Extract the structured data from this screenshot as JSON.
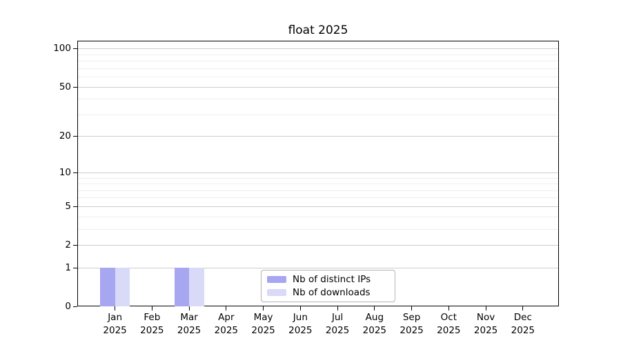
{
  "title": "float 2025",
  "chart_data": {
    "type": "bar",
    "title": "float 2025",
    "xlabel": "",
    "ylabel": "",
    "categories": [
      "Jan 2025",
      "Feb 2025",
      "Mar 2025",
      "Apr 2025",
      "May 2025",
      "Jun 2025",
      "Jul 2025",
      "Aug 2025",
      "Sep 2025",
      "Oct 2025",
      "Nov 2025",
      "Dec 2025"
    ],
    "series": [
      {
        "name": "Nb of distinct IPs",
        "color": "#a6a6f1",
        "values": [
          1,
          0,
          1,
          0,
          0,
          0,
          0,
          0,
          0,
          0,
          0,
          0
        ]
      },
      {
        "name": "Nb of downloads",
        "color": "#d9d9f8",
        "values": [
          1,
          0,
          1,
          0,
          0,
          0,
          0,
          0,
          0,
          0,
          0,
          0
        ]
      }
    ],
    "yscale": "log1p",
    "ylim": [
      0,
      115
    ],
    "yticks": [
      0,
      1,
      2,
      5,
      10,
      20,
      50,
      100
    ],
    "yticks_minor": [
      3,
      4,
      6,
      7,
      8,
      9,
      30,
      40,
      60,
      70,
      80,
      90
    ],
    "grid": "horizontal",
    "legend_position": "lower center inside"
  },
  "colors": {
    "background": "#ffffff",
    "spine": "#000000",
    "grid_major": "#cdcdcd",
    "grid_minor": "#ededed",
    "legend_border": "#b3b3b3",
    "text": "#000000"
  }
}
